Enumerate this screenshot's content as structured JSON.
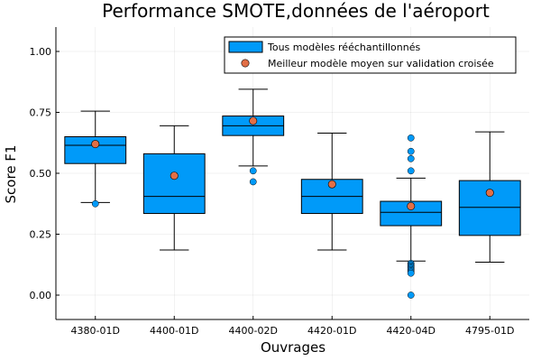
{
  "chart_data": {
    "type": "box",
    "title": "Performance SMOTE,données de l'aéroport",
    "xlabel": "Ouvrages",
    "ylabel": "Score F1",
    "ylim": [
      -0.1,
      1.1
    ],
    "yticks": [
      0.0,
      0.25,
      0.5,
      0.75,
      1.0
    ],
    "ytick_labels": [
      "0.00",
      "0.25",
      "0.50",
      "0.75",
      "1.00"
    ],
    "grid": true,
    "legend_position": "top-right",
    "categories": [
      "4380-01D",
      "4400-01D",
      "4400-02D",
      "4420-01D",
      "4420-04D",
      "4795-01D"
    ],
    "series": [
      {
        "name": "Tous modèles rééchantillonnés",
        "kind": "box",
        "color": "#009af9",
        "boxes": [
          {
            "category": "4380-01D",
            "whisker_low": 0.38,
            "q1": 0.54,
            "median": 0.615,
            "q3": 0.65,
            "whisker_high": 0.755,
            "outliers": [
              0.375
            ]
          },
          {
            "category": "4400-01D",
            "whisker_low": 0.185,
            "q1": 0.335,
            "median": 0.405,
            "q3": 0.58,
            "whisker_high": 0.695,
            "outliers": []
          },
          {
            "category": "4400-02D",
            "whisker_low": 0.53,
            "q1": 0.655,
            "median": 0.695,
            "q3": 0.735,
            "whisker_high": 0.845,
            "outliers": [
              0.51,
              0.465
            ]
          },
          {
            "category": "4420-01D",
            "whisker_low": 0.185,
            "q1": 0.335,
            "median": 0.405,
            "q3": 0.475,
            "whisker_high": 0.665,
            "outliers": []
          },
          {
            "category": "4420-04D",
            "whisker_low": 0.14,
            "q1": 0.285,
            "median": 0.34,
            "q3": 0.385,
            "whisker_high": 0.48,
            "outliers": [
              0.51,
              0.56,
              0.59,
              0.645,
              0.13,
              0.125,
              0.12,
              0.115,
              0.11,
              0.105,
              0.1,
              0.095,
              0.09,
              0.0
            ]
          },
          {
            "category": "4795-01D",
            "whisker_low": 0.135,
            "q1": 0.245,
            "median": 0.36,
            "q3": 0.47,
            "whisker_high": 0.67,
            "outliers": []
          }
        ]
      },
      {
        "name": "Meilleur modèle moyen sur validation croisée",
        "kind": "scatter",
        "color": "#e26f46",
        "values": [
          0.62,
          0.49,
          0.715,
          0.455,
          0.365,
          0.42
        ]
      }
    ]
  }
}
